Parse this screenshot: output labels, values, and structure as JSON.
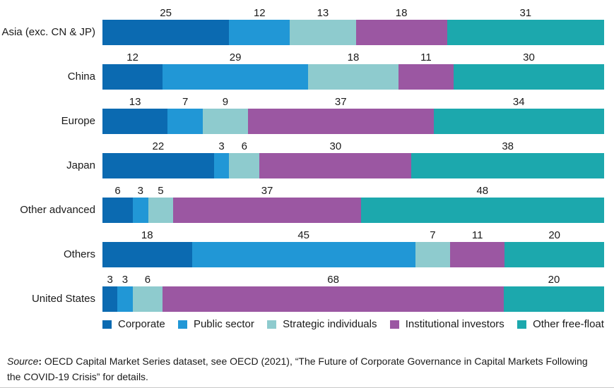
{
  "chart_data": {
    "type": "bar",
    "orientation": "horizontal",
    "stacked": true,
    "unit": "percent",
    "value_labels": "above segments",
    "legend_position": "bottom",
    "axes_visible": false,
    "grid": false,
    "categories": [
      "Asia (exc. CN & JP)",
      "China",
      "Europe",
      "Japan",
      "Other advanced",
      "Others",
      "United States"
    ],
    "series": [
      {
        "name": "Corporate",
        "color": "#0b6ab1",
        "values": [
          25,
          12,
          13,
          22,
          6,
          18,
          3
        ]
      },
      {
        "name": "Public sector",
        "color": "#2197d6",
        "values": [
          12,
          29,
          7,
          3,
          3,
          45,
          3
        ]
      },
      {
        "name": "Strategic individuals",
        "color": "#8ecbce",
        "values": [
          13,
          18,
          9,
          6,
          5,
          7,
          6
        ]
      },
      {
        "name": "Institutional investors",
        "color": "#9b57a2",
        "values": [
          18,
          11,
          37,
          30,
          37,
          11,
          68
        ]
      },
      {
        "name": "Other free-float",
        "color": "#1ca8ad",
        "values": [
          31,
          30,
          34,
          38,
          48,
          20,
          20
        ]
      }
    ]
  },
  "legend": {
    "items": [
      {
        "label": "Corporate",
        "color": "#0b6ab1"
      },
      {
        "label": "Public sector",
        "color": "#2197d6"
      },
      {
        "label": "Strategic individuals",
        "color": "#8ecbce"
      },
      {
        "label": "Institutional investors",
        "color": "#9b57a2"
      },
      {
        "label": "Other free-float",
        "color": "#1ca8ad"
      }
    ]
  },
  "source": {
    "label": "Source",
    "colon": ":",
    "text": " OECD Capital Market Series dataset, see OECD (2021), “The Future of Corporate Governance in Capital Markets Following the COVID-19 Crisis” for details."
  }
}
